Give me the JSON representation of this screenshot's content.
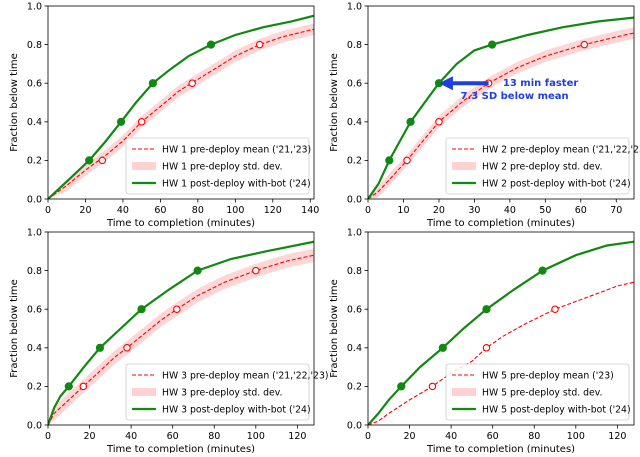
{
  "chart_data": [
    {
      "type": "line",
      "xlabel": "Time to completion (minutes)",
      "ylabel": "Fraction below time",
      "xlim": [
        0,
        142
      ],
      "ylim": [
        0,
        1.0
      ],
      "xticks": [
        0,
        20,
        40,
        60,
        80,
        100,
        120,
        140
      ],
      "yticks": [
        0.0,
        0.2,
        0.4,
        0.6,
        0.8,
        1.0
      ],
      "grid": false,
      "legend": "bottom-right",
      "series": [
        {
          "name": "HW 1 pre-deploy mean ('21,'23)",
          "style": "dashed",
          "color": "#ff0000",
          "x": [
            0,
            10,
            20,
            30,
            40,
            50,
            60,
            70,
            80,
            90,
            100,
            113,
            125,
            142
          ],
          "y": [
            0,
            0.07,
            0.15,
            0.22,
            0.3,
            0.4,
            0.48,
            0.56,
            0.62,
            0.68,
            0.74,
            0.8,
            0.84,
            0.88
          ],
          "markers_x": [
            29,
            50,
            77,
            113
          ],
          "markers_y": [
            0.2,
            0.4,
            0.6,
            0.8
          ]
        },
        {
          "name": "HW 1 pre-deploy std. dev.",
          "style": "band",
          "color": "#ffd2d2",
          "spread": 0.03
        },
        {
          "name": "HW 1 post-deploy with-bot ('24)",
          "style": "solid",
          "color": "#118811",
          "x": [
            0,
            10,
            22,
            30,
            39,
            47,
            56,
            65,
            75,
            87,
            100,
            115,
            130,
            142
          ],
          "y": [
            0,
            0.09,
            0.2,
            0.29,
            0.4,
            0.5,
            0.6,
            0.67,
            0.74,
            0.8,
            0.85,
            0.89,
            0.92,
            0.95
          ],
          "markers_x": [
            22,
            39,
            56,
            87
          ],
          "markers_y": [
            0.2,
            0.4,
            0.6,
            0.8
          ]
        }
      ]
    },
    {
      "type": "line",
      "xlabel": "Time to completion (minutes)",
      "ylabel": "Fraction below time",
      "xlim": [
        0,
        75
      ],
      "ylim": [
        0,
        1.0
      ],
      "xticks": [
        0,
        10,
        20,
        30,
        40,
        50,
        60,
        70
      ],
      "yticks": [
        0.0,
        0.2,
        0.4,
        0.6,
        0.8,
        1.0
      ],
      "grid": false,
      "legend": "bottom-right",
      "annotation": {
        "line1": "13 min faster",
        "line2": "7.3 SD below mean",
        "color": "#1f3fe0",
        "from": [
          34,
          0.6
        ],
        "to": [
          20,
          0.6
        ]
      },
      "series": [
        {
          "name": "HW 2 pre-deploy mean ('21,'22,'23)",
          "style": "dashed",
          "color": "#ff0000",
          "x": [
            0,
            3,
            6,
            11,
            15,
            20,
            27,
            34,
            42,
            50,
            61,
            70,
            75
          ],
          "y": [
            0,
            0.04,
            0.1,
            0.2,
            0.29,
            0.4,
            0.51,
            0.6,
            0.68,
            0.74,
            0.8,
            0.84,
            0.86
          ],
          "markers_x": [
            11,
            20,
            34,
            61
          ],
          "markers_y": [
            0.2,
            0.4,
            0.6,
            0.8
          ]
        },
        {
          "name": "HW 2 pre-deploy std. dev.",
          "style": "band",
          "color": "#ffd2d2",
          "spread": 0.03
        },
        {
          "name": "HW 2 post-deploy with-bot ('24)",
          "style": "solid",
          "color": "#118811",
          "x": [
            0,
            3,
            6,
            9,
            12,
            16,
            20,
            25,
            30,
            35,
            45,
            55,
            65,
            75
          ],
          "y": [
            0,
            0.08,
            0.2,
            0.3,
            0.4,
            0.5,
            0.6,
            0.7,
            0.77,
            0.8,
            0.85,
            0.89,
            0.92,
            0.94
          ],
          "markers_x": [
            6,
            12,
            20,
            35
          ],
          "markers_y": [
            0.2,
            0.4,
            0.6,
            0.8
          ]
        }
      ]
    },
    {
      "type": "line",
      "xlabel": "Time to completion (minutes)",
      "ylabel": "Fraction below time",
      "xlim": [
        0,
        128
      ],
      "ylim": [
        0,
        1.0
      ],
      "xticks": [
        0,
        20,
        40,
        60,
        80,
        100,
        120
      ],
      "yticks": [
        0.0,
        0.2,
        0.4,
        0.6,
        0.8,
        1.0
      ],
      "grid": false,
      "legend": "bottom-right",
      "series": [
        {
          "name": "HW 3 pre-deploy mean ('21,'22,'23)",
          "style": "dashed",
          "color": "#ff0000",
          "x": [
            0,
            3,
            8,
            12,
            17,
            25,
            32,
            38,
            46,
            54,
            62,
            72,
            85,
            100,
            115,
            128
          ],
          "y": [
            0,
            0.06,
            0.11,
            0.15,
            0.2,
            0.28,
            0.35,
            0.4,
            0.47,
            0.54,
            0.6,
            0.67,
            0.74,
            0.8,
            0.85,
            0.88
          ],
          "markers_x": [
            17,
            38,
            62,
            100
          ],
          "markers_y": [
            0.2,
            0.4,
            0.6,
            0.8
          ]
        },
        {
          "name": "HW 3 pre-deploy std. dev.",
          "style": "band",
          "color": "#ffd2d2",
          "spread": 0.035
        },
        {
          "name": "HW 3 post-deploy with-bot ('24)",
          "style": "solid",
          "color": "#118811",
          "x": [
            0,
            3,
            6,
            10,
            18,
            25,
            35,
            45,
            58,
            72,
            88,
            105,
            128
          ],
          "y": [
            0,
            0.09,
            0.15,
            0.2,
            0.31,
            0.4,
            0.5,
            0.6,
            0.7,
            0.8,
            0.86,
            0.9,
            0.95
          ],
          "markers_x": [
            10,
            25,
            45,
            72
          ],
          "markers_y": [
            0.2,
            0.4,
            0.6,
            0.8
          ]
        }
      ]
    },
    {
      "type": "line",
      "xlabel": "Time to completion (minutes)",
      "ylabel": "Fraction below time",
      "xlim": [
        0,
        128
      ],
      "ylim": [
        0,
        1.0
      ],
      "xticks": [
        0,
        20,
        40,
        60,
        80,
        100,
        120
      ],
      "yticks": [
        0.0,
        0.2,
        0.4,
        0.6,
        0.8,
        1.0
      ],
      "grid": false,
      "legend": "bottom-right",
      "series": [
        {
          "name": "HW 5 pre-deploy mean ('23)",
          "style": "dashed",
          "color": "#ff0000",
          "x": [
            0,
            5,
            10,
            20,
            31,
            40,
            50,
            57,
            65,
            75,
            90,
            100,
            110,
            120,
            128
          ],
          "y": [
            0,
            0.02,
            0.06,
            0.13,
            0.2,
            0.27,
            0.33,
            0.4,
            0.46,
            0.52,
            0.6,
            0.64,
            0.68,
            0.72,
            0.74
          ],
          "markers_x": [
            31,
            57,
            90
          ],
          "markers_y": [
            0.2,
            0.4,
            0.6
          ]
        },
        {
          "name": "HW 5 pre-deploy std. dev.",
          "style": "band",
          "color": "#ffd2d2",
          "spread": 0.0
        },
        {
          "name": "HW 5 post-deploy with-bot ('24)",
          "style": "solid",
          "color": "#118811",
          "x": [
            0,
            5,
            10,
            16,
            25,
            36,
            46,
            57,
            70,
            84,
            100,
            115,
            128
          ],
          "y": [
            0,
            0.06,
            0.13,
            0.2,
            0.3,
            0.4,
            0.5,
            0.6,
            0.7,
            0.8,
            0.88,
            0.93,
            0.95
          ],
          "markers_x": [
            16,
            36,
            57,
            84
          ],
          "markers_y": [
            0.2,
            0.4,
            0.6,
            0.8
          ]
        }
      ]
    }
  ]
}
